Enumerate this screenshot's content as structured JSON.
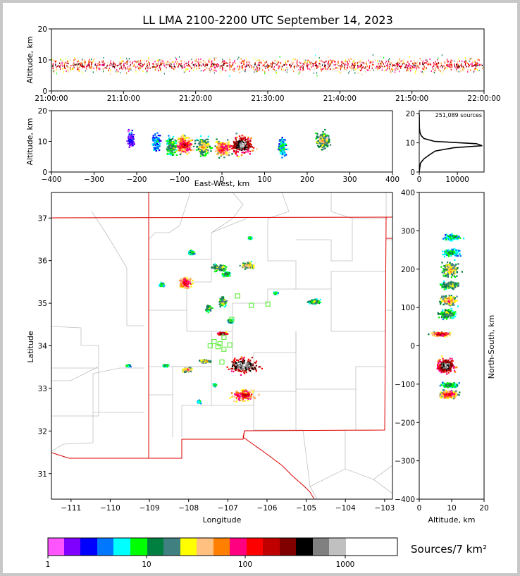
{
  "title": "LL LMA 2100-2200 UTC September 14, 2023",
  "colors": {
    "colorbar": [
      "#ff55ff",
      "#8000ff",
      "#0000ff",
      "#0077ff",
      "#00ffff",
      "#00ff00",
      "#008040",
      "#408080",
      "#ffff00",
      "#ffc080",
      "#ff8000",
      "#ff0080",
      "#ff0000",
      "#c00000",
      "#800000",
      "#000000",
      "#808080",
      "#c0c0c0",
      "#ffffff"
    ],
    "boundary_state": "#dd0000",
    "boundary_county": "#c0c0c0",
    "station_marker": "#66ee44"
  },
  "chart_data": [
    {
      "id": "time_height",
      "type": "scatter",
      "ylabel": "Altitude, km",
      "ylim": [
        0,
        20
      ],
      "yticks": [
        "0",
        "10",
        "20"
      ],
      "xticks": [
        "21:00:00",
        "21:10:00",
        "21:20:00",
        "21:30:00",
        "21:40:00",
        "21:50:00",
        "22:00:00"
      ],
      "xlim": [
        "21:00:00",
        "22:00:00"
      ],
      "source_altitude_band_km": [
        3,
        14
      ]
    },
    {
      "id": "ew_height",
      "type": "heatmap",
      "xlabel": "East-West, km",
      "ylabel": "Altitude, km",
      "xlim": [
        -400,
        400
      ],
      "ylim": [
        0,
        20
      ],
      "xticks": [
        "−400",
        "−300",
        "−200",
        "−100",
        "0",
        "100",
        "200",
        "300",
        "400"
      ],
      "yticks": [
        "0",
        "10",
        "20"
      ],
      "clusters": [
        {
          "x_center_km": -215,
          "x_width_km": 12,
          "z_center_km": 11,
          "intensity": 0.15
        },
        {
          "x_center_km": -155,
          "x_width_km": 15,
          "z_center_km": 10,
          "intensity": 0.25
        },
        {
          "x_center_km": -120,
          "x_width_km": 20,
          "z_center_km": 8.5,
          "intensity": 0.45
        },
        {
          "x_center_km": -90,
          "x_width_km": 35,
          "z_center_km": 9,
          "intensity": 0.75
        },
        {
          "x_center_km": -45,
          "x_width_km": 25,
          "z_center_km": 8.5,
          "intensity": 0.55
        },
        {
          "x_center_km": 0,
          "x_width_km": 30,
          "z_center_km": 8,
          "intensity": 0.7
        },
        {
          "x_center_km": 45,
          "x_width_km": 40,
          "z_center_km": 9,
          "intensity": 1.0
        },
        {
          "x_center_km": 140,
          "x_width_km": 15,
          "z_center_km": 8.5,
          "intensity": 0.3
        },
        {
          "x_center_km": 235,
          "x_width_km": 25,
          "z_center_km": 10.5,
          "intensity": 0.55
        }
      ]
    },
    {
      "id": "altitude_histogram",
      "type": "line",
      "annotation": "251,089 sources",
      "xlim": [
        0,
        17000
      ],
      "ylim": [
        0,
        21
      ],
      "xticks": [
        "0",
        "10000"
      ],
      "yticks": [
        "0",
        "10",
        "20"
      ],
      "x": [
        0,
        300,
        1200,
        2800,
        4200,
        9000,
        16500,
        15000,
        4000,
        1200,
        500,
        200,
        60,
        0
      ],
      "y": [
        0,
        3,
        4.5,
        6,
        7.2,
        8.3,
        9.0,
        9.7,
        10.5,
        11.5,
        12.5,
        13.5,
        15,
        20
      ]
    },
    {
      "id": "plan_view",
      "type": "heatmap",
      "xlabel": "Longitude",
      "ylabel": "Latitude",
      "xlim": [
        -111.5,
        -102.8
      ],
      "ylim": [
        30.4,
        37.6
      ],
      "xticks": [
        "−111",
        "−110",
        "−109",
        "−108",
        "−107",
        "−106",
        "−105",
        "−104",
        "−103"
      ],
      "yticks": [
        "31",
        "32",
        "33",
        "34",
        "35",
        "36",
        "37"
      ],
      "cells": [
        {
          "lon": -106.6,
          "lat": 33.55,
          "w": 0.8,
          "h": 0.35,
          "i": 1.0
        },
        {
          "lon": -106.6,
          "lat": 32.85,
          "w": 0.6,
          "h": 0.25,
          "i": 0.75
        },
        {
          "lon": -108.1,
          "lat": 35.5,
          "w": 0.3,
          "h": 0.25,
          "i": 0.75
        },
        {
          "lon": -107.25,
          "lat": 35.85,
          "w": 0.4,
          "h": 0.15,
          "i": 0.5
        },
        {
          "lon": -106.5,
          "lat": 35.9,
          "w": 0.35,
          "h": 0.15,
          "i": 0.55
        },
        {
          "lon": -107.05,
          "lat": 35.7,
          "w": 0.2,
          "h": 0.1,
          "i": 0.4
        },
        {
          "lon": -107.95,
          "lat": 36.2,
          "w": 0.15,
          "h": 0.1,
          "i": 0.35
        },
        {
          "lon": -107.15,
          "lat": 34.3,
          "w": 0.25,
          "h": 0.06,
          "i": 0.9
        },
        {
          "lon": -107.15,
          "lat": 35.05,
          "w": 0.2,
          "h": 0.2,
          "i": 0.5
        },
        {
          "lon": -107.5,
          "lat": 34.9,
          "w": 0.15,
          "h": 0.15,
          "i": 0.45
        },
        {
          "lon": -104.8,
          "lat": 35.05,
          "w": 0.3,
          "h": 0.1,
          "i": 0.45
        },
        {
          "lon": -105.8,
          "lat": 35.25,
          "w": 0.1,
          "h": 0.05,
          "i": 0.35
        },
        {
          "lon": -108.05,
          "lat": 33.45,
          "w": 0.25,
          "h": 0.1,
          "i": 0.6
        },
        {
          "lon": -107.6,
          "lat": 33.65,
          "w": 0.25,
          "h": 0.08,
          "i": 0.55
        },
        {
          "lon": -108.6,
          "lat": 33.55,
          "w": 0.15,
          "h": 0.05,
          "i": 0.4
        },
        {
          "lon": -109.55,
          "lat": 33.55,
          "w": 0.1,
          "h": 0.05,
          "i": 0.35
        },
        {
          "lon": -107.35,
          "lat": 33.1,
          "w": 0.08,
          "h": 0.06,
          "i": 0.35
        },
        {
          "lon": -107.75,
          "lat": 32.7,
          "w": 0.08,
          "h": 0.06,
          "i": 0.3
        },
        {
          "lon": -108.7,
          "lat": 35.45,
          "w": 0.12,
          "h": 0.08,
          "i": 0.35
        },
        {
          "lon": -106.95,
          "lat": 34.6,
          "w": 0.12,
          "h": 0.1,
          "i": 0.4
        },
        {
          "lon": -106.45,
          "lat": 36.55,
          "w": 0.1,
          "h": 0.05,
          "i": 0.35
        }
      ],
      "stations": [
        [
          -106.75,
          35.17
        ],
        [
          -106.4,
          34.95
        ],
        [
          -105.98,
          34.98
        ],
        [
          -106.9,
          34.62
        ],
        [
          -107.1,
          34.2
        ],
        [
          -107.35,
          34.1
        ],
        [
          -107.2,
          34.05
        ],
        [
          -107.45,
          34.0
        ],
        [
          -107.25,
          33.98
        ],
        [
          -106.95,
          34.02
        ],
        [
          -107.1,
          33.92
        ],
        [
          -107.15,
          33.62
        ]
      ]
    },
    {
      "id": "ns_height",
      "type": "heatmap",
      "xlabel": "Altitude, km",
      "ylabel": "North-South, km",
      "xlim": [
        0,
        20
      ],
      "ylim": [
        -400,
        400
      ],
      "xticks": [
        "0",
        "10",
        "20"
      ],
      "yticks": [
        "−400",
        "−300",
        "−200",
        "−100",
        "0",
        "100",
        "200",
        "300",
        "400"
      ],
      "clusters": [
        {
          "y_center_km": 285,
          "y_width_km": 12,
          "z_center_km": 10,
          "intensity": 0.35
        },
        {
          "y_center_km": 245,
          "y_width_km": 15,
          "z_center_km": 9.5,
          "intensity": 0.35
        },
        {
          "y_center_km": 200,
          "y_width_km": 30,
          "z_center_km": 9.5,
          "intensity": 0.55
        },
        {
          "y_center_km": 160,
          "y_width_km": 15,
          "z_center_km": 9.5,
          "intensity": 0.5
        },
        {
          "y_center_km": 120,
          "y_width_km": 20,
          "z_center_km": 9,
          "intensity": 0.6
        },
        {
          "y_center_km": 85,
          "y_width_km": 20,
          "z_center_km": 8.5,
          "intensity": 0.45
        },
        {
          "y_center_km": 32,
          "y_width_km": 8,
          "z_center_km": 6.5,
          "intensity": 0.8
        },
        {
          "y_center_km": -50,
          "y_width_km": 30,
          "z_center_km": 8,
          "intensity": 1.0
        },
        {
          "y_center_km": -100,
          "y_width_km": 10,
          "z_center_km": 9,
          "intensity": 0.4
        },
        {
          "y_center_km": -125,
          "y_width_km": 15,
          "z_center_km": 9,
          "intensity": 0.75
        }
      ]
    }
  ],
  "colorbar": {
    "label": "Sources/7 km²",
    "ticks": [
      "1",
      "10",
      "100",
      "1000"
    ],
    "scale": "log"
  }
}
